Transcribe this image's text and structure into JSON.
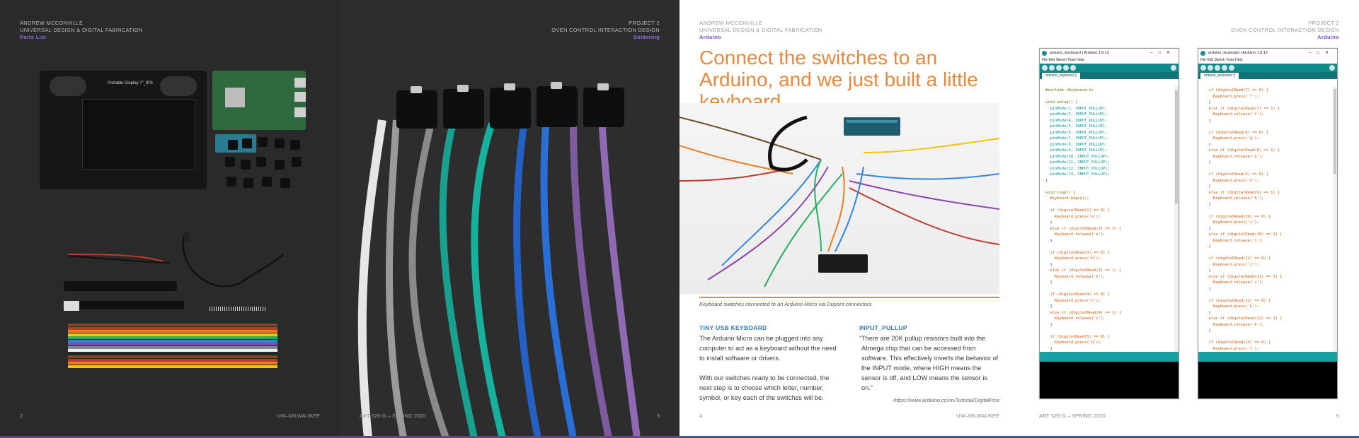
{
  "pages": {
    "p2": {
      "author": "ANDREW MCCONVILLE",
      "course": "UNIVERSAL DESIGN & DIGITAL FABRICATION",
      "section": "Parts List",
      "page_number": "2",
      "footer": "UW–MILWAUKEE",
      "board_label": "Portable Display 7\"_IPS"
    },
    "p3": {
      "project": "PROJECT 2",
      "project_title": "OVEN CONTROL INTERACTION DESIGN",
      "section": "Soldering",
      "page_number": "3",
      "footer": "ART 526-G – SPRING 2020"
    },
    "p4": {
      "author": "ANDREW MCCONVILLE",
      "course": "UNIVERSAL DESIGN & DIGITAL FABRICATION",
      "section": "Arduino",
      "title": "Connect the switches to an Arduino, and we just built a little keyboard.",
      "caption": "Keyboard switches connected to an Arduino Micro via Dupont connectors.",
      "page_number": "4",
      "footer": "UW–MILWAUKEE",
      "col1_heading": "TINY USB KEYBOARD",
      "col1_p1": "The Arduino Micro can be plugged into any computer to act as a keyboard without the need to install software or drivers.",
      "col1_p2": "With our switches ready to be connected, the next step is to choose which letter, number, symbol, or key each of the switches will be.",
      "col2_heading": "INPUT_PULLUP",
      "col2_quote": "“There are 20K pullup resistors built into the Atmega chip that can be accessed from software. This effectively inverts the behavior of the INPUT mode, where HIGH means the sensor is off, and LOW means the sensor is on.”",
      "col2_source": "-https://www.arduino.cc/en/Tutorial/DigitalPins"
    },
    "p5": {
      "project": "PROJECT 2",
      "project_title": "OVEN CONTROL INTERACTION DESIGN",
      "section": "Arduino",
      "page_number": "5",
      "footer": "ART 526-G – SPRING 2020"
    }
  },
  "ide": {
    "window_title": "arduino_keyboard | Arduino 1.8.12",
    "menu": "File  Edit  Sketch  Tools  Help",
    "tab": "arduino_keyboard §",
    "window_controls": "–□✕"
  },
  "code_left": [
    "#include <Keyboard.h>",
    "",
    "void setup() {",
    "  pinMode(2, INPUT_PULLUP);",
    "  pinMode(3, INPUT_PULLUP);",
    "  pinMode(4, INPUT_PULLUP);",
    "  pinMode(5, INPUT_PULLUP);",
    "  pinMode(6, INPUT_PULLUP);",
    "  pinMode(7, INPUT_PULLUP);",
    "  pinMode(8, INPUT_PULLUP);",
    "  pinMode(9, INPUT_PULLUP);",
    "  pinMode(10, INPUT_PULLUP);",
    "  pinMode(11, INPUT_PULLUP);",
    "  pinMode(12, INPUT_PULLUP);",
    "  pinMode(13, INPUT_PULLUP);",
    "}",
    "",
    "void loop() {",
    "  Keyboard.begin();",
    "",
    "  if (digitalRead(2) == 0) {",
    "    Keyboard.press('a');",
    "  }",
    "  else if (digitalRead(2) == 1) {",
    "    Keyboard.release('a');",
    "  }",
    "",
    "  if (digitalRead(3) == 0) {",
    "    Keyboard.press('b');",
    "  }",
    "  else if (digitalRead(3) == 1) {",
    "    Keyboard.release('b');",
    "  }",
    "",
    "  if (digitalRead(4) == 0) {",
    "    Keyboard.press('c');",
    "  }",
    "  else if (digitalRead(4) == 1) {",
    "    Keyboard.release('c');",
    "  }",
    "",
    "  if (digitalRead(5) == 0) {",
    "    Keyboard.press('d');",
    "  }",
    "  else if (digitalRead(5) == 1) {",
    "    Keyboard.release('d');",
    "  }",
    "",
    "  if (digitalRead(6) == 0) {",
    "    Keyboard.press('e');"
  ],
  "code_right": [
    "  if (digitalRead(7) == 0) {",
    "    Keyboard.press('f');",
    "  }",
    "  else if (digitalRead(7) == 1) {",
    "    Keyboard.release('f');",
    "  }",
    "",
    "  if (digitalRead(8) == 0) {",
    "    Keyboard.press('g');",
    "  }",
    "  else if (digitalRead(8) == 1) {",
    "    Keyboard.release('g');",
    "  }",
    "",
    "  if (digitalRead(9) == 0) {",
    "    Keyboard.press('h');",
    "  }",
    "  else if (digitalRead(9) == 1) {",
    "    Keyboard.release('h');",
    "  }",
    "",
    "  if (digitalRead(10) == 0) {",
    "    Keyboard.press('i');",
    "  }",
    "  else if (digitalRead(10) == 1) {",
    "    Keyboard.release('i');",
    "  }",
    "",
    "  if (digitalRead(11) == 0) {",
    "    Keyboard.press('j');",
    "  }",
    "  else if (digitalRead(11) == 1) {",
    "    Keyboard.release('j');",
    "  }",
    "",
    "  if (digitalRead(12) == 0) {",
    "    Keyboard.press('k');",
    "  }",
    "  else if (digitalRead(12) == 1) {",
    "    Keyboard.release('k');",
    "  }",
    "",
    "  if (digitalRead(13) == 0) {",
    "    Keyboard.press('l');",
    "  }",
    "  else if (digitalRead(13) == 1) {",
    "    Keyboard.release('l');",
    "  }",
    "",
    "  Keyboard.end();",
    "}"
  ],
  "colors": {
    "accent_orange": "#e8883a",
    "heading_blue": "#2f7ab5",
    "section_purple": "#8f6ee0",
    "ide_teal": "#0f8b8d"
  }
}
